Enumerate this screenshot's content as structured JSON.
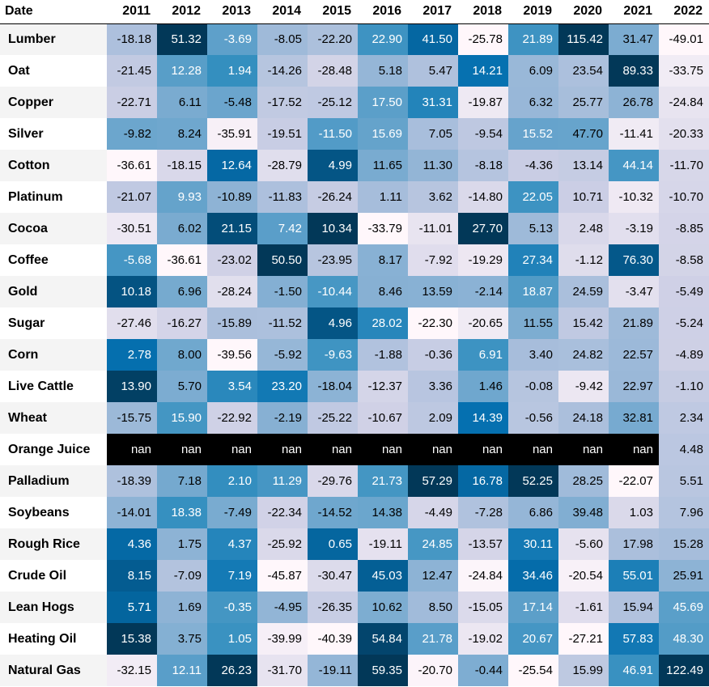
{
  "chart_data": {
    "type": "heatmap",
    "corner_label": "Date",
    "x": [
      "2011",
      "2012",
      "2013",
      "2014",
      "2015",
      "2016",
      "2017",
      "2018",
      "2019",
      "2020",
      "2021",
      "2022"
    ],
    "rows": [
      {
        "name": "Lumber",
        "values": [
          -18.18,
          51.32,
          -3.69,
          -8.05,
          -22.2,
          22.9,
          41.5,
          -25.78,
          21.89,
          115.42,
          31.47,
          -49.01
        ]
      },
      {
        "name": "Oat",
        "values": [
          -21.45,
          12.28,
          1.94,
          -14.26,
          -28.48,
          5.18,
          5.47,
          14.21,
          6.09,
          23.54,
          89.33,
          -33.75
        ]
      },
      {
        "name": "Copper",
        "values": [
          -22.71,
          6.11,
          -5.48,
          -17.52,
          -25.12,
          17.5,
          31.31,
          -19.87,
          6.32,
          25.77,
          26.78,
          -24.84
        ]
      },
      {
        "name": "Silver",
        "values": [
          -9.82,
          8.24,
          -35.91,
          -19.51,
          -11.5,
          15.69,
          7.05,
          -9.54,
          15.52,
          47.7,
          -11.41,
          -20.33
        ]
      },
      {
        "name": "Cotton",
        "values": [
          -36.61,
          -18.15,
          12.64,
          -28.79,
          4.99,
          11.65,
          11.3,
          -8.18,
          -4.36,
          13.14,
          44.14,
          -11.7
        ]
      },
      {
        "name": "Platinum",
        "values": [
          -21.07,
          9.93,
          -10.89,
          -11.83,
          -26.24,
          1.11,
          3.62,
          -14.8,
          22.05,
          10.71,
          -10.32,
          -10.7
        ]
      },
      {
        "name": "Cocoa",
        "values": [
          -30.51,
          6.02,
          21.15,
          7.42,
          10.34,
          -33.79,
          -11.01,
          27.7,
          5.13,
          2.48,
          -3.19,
          -8.85
        ]
      },
      {
        "name": "Coffee",
        "values": [
          -5.68,
          -36.61,
          -23.02,
          50.5,
          -23.95,
          8.17,
          -7.92,
          -19.29,
          27.34,
          -1.12,
          76.3,
          -8.58
        ]
      },
      {
        "name": "Gold",
        "values": [
          10.18,
          6.96,
          -28.24,
          -1.5,
          -10.44,
          8.46,
          13.59,
          -2.14,
          18.87,
          24.59,
          -3.47,
          -5.49
        ]
      },
      {
        "name": "Sugar",
        "values": [
          -27.46,
          -16.27,
          -15.89,
          -11.52,
          4.96,
          28.02,
          -22.3,
          -20.65,
          11.55,
          15.42,
          21.89,
          -5.24
        ]
      },
      {
        "name": "Corn",
        "values": [
          2.78,
          8.0,
          -39.56,
          -5.92,
          -9.63,
          -1.88,
          -0.36,
          6.91,
          3.4,
          24.82,
          22.57,
          -4.89
        ]
      },
      {
        "name": "Live Cattle",
        "values": [
          13.9,
          5.7,
          3.54,
          23.2,
          -18.04,
          -12.37,
          3.36,
          1.46,
          -0.08,
          -9.42,
          22.97,
          -1.1
        ]
      },
      {
        "name": "Wheat",
        "values": [
          -15.75,
          15.9,
          -22.92,
          -2.19,
          -25.22,
          -10.67,
          2.09,
          14.39,
          -0.56,
          24.18,
          32.81,
          2.34
        ]
      },
      {
        "name": "Orange Juice",
        "values": [
          null,
          null,
          null,
          null,
          null,
          null,
          null,
          null,
          null,
          null,
          null,
          4.48
        ]
      },
      {
        "name": "Palladium",
        "values": [
          -18.39,
          7.18,
          2.1,
          11.29,
          -29.76,
          21.73,
          57.29,
          16.78,
          52.25,
          28.25,
          -22.07,
          5.51
        ]
      },
      {
        "name": "Soybeans",
        "values": [
          -14.01,
          18.38,
          -7.49,
          -22.34,
          -14.52,
          14.38,
          -4.49,
          -7.28,
          6.86,
          39.48,
          1.03,
          7.96
        ]
      },
      {
        "name": "Rough Rice",
        "values": [
          4.36,
          1.75,
          4.37,
          -25.92,
          0.65,
          -19.11,
          24.85,
          -13.57,
          30.11,
          -5.6,
          17.98,
          15.28
        ]
      },
      {
        "name": "Crude Oil",
        "values": [
          8.15,
          -7.09,
          7.19,
          -45.87,
          -30.47,
          45.03,
          12.47,
          -24.84,
          34.46,
          -20.54,
          55.01,
          25.91
        ]
      },
      {
        "name": "Lean Hogs",
        "values": [
          5.71,
          1.69,
          -0.35,
          -4.95,
          -26.35,
          10.62,
          8.5,
          -15.05,
          17.14,
          -1.61,
          15.94,
          45.69
        ]
      },
      {
        "name": "Heating Oil",
        "values": [
          15.38,
          3.75,
          1.05,
          -39.99,
          -40.39,
          54.84,
          21.78,
          -19.02,
          20.67,
          -27.21,
          57.83,
          48.3
        ]
      },
      {
        "name": "Natural Gas",
        "values": [
          -32.15,
          12.11,
          26.23,
          -31.7,
          -19.11,
          59.35,
          -20.7,
          -0.44,
          -25.54,
          15.99,
          46.91,
          122.49
        ]
      }
    ],
    "missing_label": "nan",
    "colormap": "PuBu",
    "color_scale": "per-column",
    "colors": {
      "low": "#fff7fb",
      "mid": "#a6bddb",
      "high": "#023858",
      "missing": "#000000"
    }
  }
}
